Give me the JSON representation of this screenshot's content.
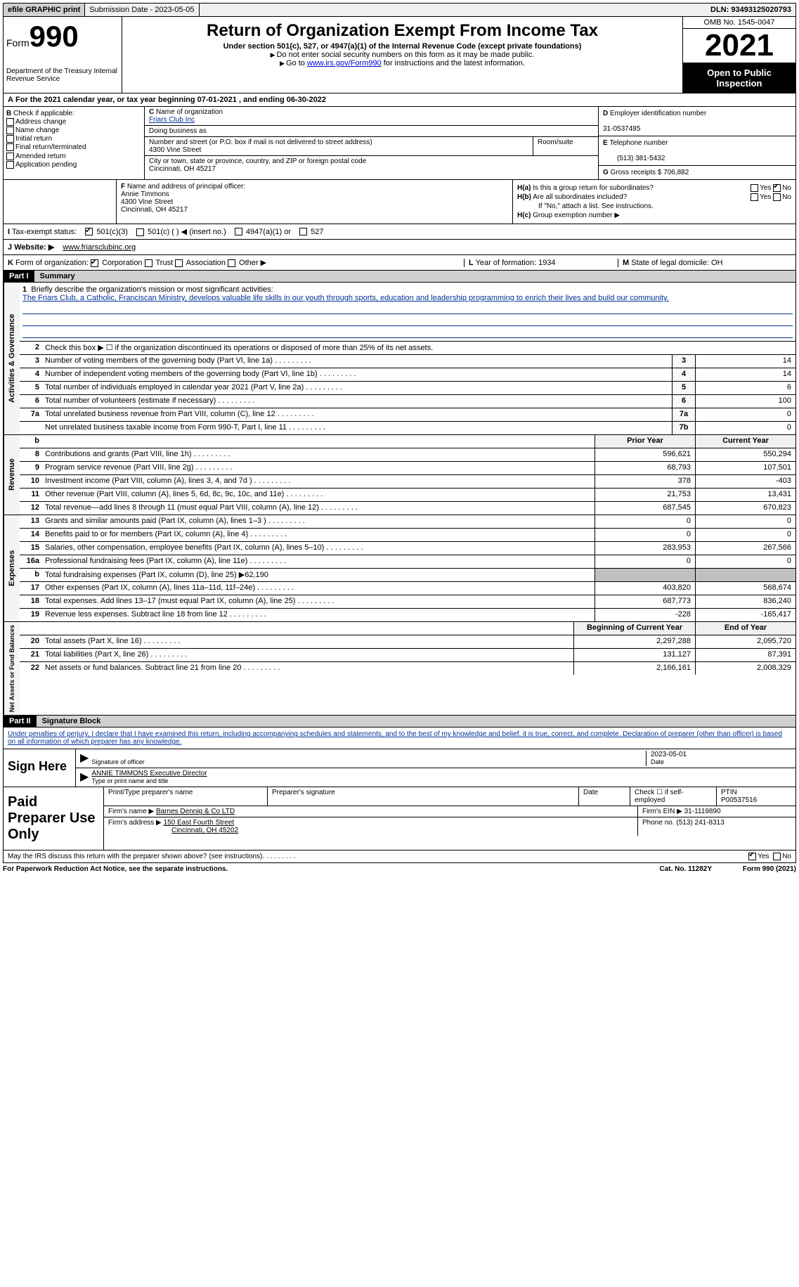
{
  "top": {
    "efile": "efile GRAPHIC print",
    "submission": "Submission Date - 2023-05-05",
    "dln": "DLN: 93493125020793"
  },
  "header": {
    "form_word": "Form",
    "form_num": "990",
    "title": "Return of Organization Exempt From Income Tax",
    "subtitle": "Under section 501(c), 527, or 4947(a)(1) of the Internal Revenue Code (except private foundations)",
    "instr1": "Do not enter social security numbers on this form as it may be made public.",
    "instr2_pre": "Go to ",
    "instr2_link": "www.irs.gov/Form990",
    "instr2_post": " for instructions and the latest information.",
    "dept": "Department of the Treasury Internal Revenue Service",
    "omb": "OMB No. 1545-0047",
    "year": "2021",
    "open": "Open to Public Inspection"
  },
  "A": {
    "text": "For the 2021 calendar year, or tax year beginning 07-01-2021   , and ending 06-30-2022"
  },
  "B": {
    "label": "Check if applicable:",
    "items": [
      "Address change",
      "Name change",
      "Initial return",
      "Final return/terminated",
      "Amended return",
      "Application pending"
    ]
  },
  "C": {
    "name_lbl": "Name of organization",
    "name": "Friars Club Inc",
    "dba_lbl": "Doing business as",
    "addr_lbl": "Number and street (or P.O. box if mail is not delivered to street address)",
    "room_lbl": "Room/suite",
    "addr": "4300 Vine Street",
    "city_lbl": "City or town, state or province, country, and ZIP or foreign postal code",
    "city": "Cincinnati, OH  45217"
  },
  "D": {
    "lbl": "Employer identification number",
    "val": "31-0537485"
  },
  "E": {
    "lbl": "Telephone number",
    "val": "(513) 381-5432"
  },
  "G": {
    "lbl": "Gross receipts $",
    "val": "706,882"
  },
  "F": {
    "lbl": "Name and address of principal officer:",
    "name": "Annie Timmons",
    "addr1": "4300 Vine Street",
    "addr2": "Cincinnati, OH  45217"
  },
  "H": {
    "a": "Is this a group return for subordinates?",
    "b": "Are all subordinates included?",
    "b_note": "If \"No,\" attach a list. See instructions.",
    "c": "Group exemption number ▶",
    "yes": "Yes",
    "no": "No"
  },
  "I": {
    "lbl": "Tax-exempt status:",
    "opt1": "501(c)(3)",
    "opt2": "501(c) (  ) ◀ (insert no.)",
    "opt3": "4947(a)(1) or",
    "opt4": "527"
  },
  "J": {
    "lbl": "Website: ▶",
    "val": "www.friarsclubinc.org"
  },
  "K": {
    "lbl": "Form of organization:",
    "opts": [
      "Corporation",
      "Trust",
      "Association",
      "Other ▶"
    ]
  },
  "L": {
    "lbl": "Year of formation:",
    "val": "1934"
  },
  "M": {
    "lbl": "State of legal domicile:",
    "val": "OH"
  },
  "part1": {
    "hdr": "Part I",
    "title": "Summary"
  },
  "mission": {
    "lbl": "Briefly describe the organization's mission or most significant activities:",
    "text": "The Friars Club, a Catholic, Franciscan Ministry, develops valuable life skills in our youth through sports, education and leadership programming to enrich their lives and build our community."
  },
  "line2": "Check this box ▶ ☐  if the organization discontinued its operations or disposed of more than 25% of its net assets.",
  "gov_lines": [
    {
      "n": "3",
      "d": "Number of voting members of the governing body (Part VI, line 1a)",
      "b": "3",
      "v": "14"
    },
    {
      "n": "4",
      "d": "Number of independent voting members of the governing body (Part VI, line 1b)",
      "b": "4",
      "v": "14"
    },
    {
      "n": "5",
      "d": "Total number of individuals employed in calendar year 2021 (Part V, line 2a)",
      "b": "5",
      "v": "6"
    },
    {
      "n": "6",
      "d": "Total number of volunteers (estimate if necessary)",
      "b": "6",
      "v": "100"
    },
    {
      "n": "7a",
      "d": "Total unrelated business revenue from Part VIII, column (C), line 12",
      "b": "7a",
      "v": "0"
    },
    {
      "n": "",
      "d": "Net unrelated business taxable income from Form 990-T, Part I, line 11",
      "b": "7b",
      "v": "0"
    }
  ],
  "col_hdr": {
    "prior": "Prior Year",
    "current": "Current Year"
  },
  "rev_lines": [
    {
      "n": "8",
      "d": "Contributions and grants (Part VIII, line 1h)",
      "p": "596,621",
      "c": "550,294"
    },
    {
      "n": "9",
      "d": "Program service revenue (Part VIII, line 2g)",
      "p": "68,793",
      "c": "107,501"
    },
    {
      "n": "10",
      "d": "Investment income (Part VIII, column (A), lines 3, 4, and 7d )",
      "p": "378",
      "c": "-403"
    },
    {
      "n": "11",
      "d": "Other revenue (Part VIII, column (A), lines 5, 6d, 8c, 9c, 10c, and 11e)",
      "p": "21,753",
      "c": "13,431"
    },
    {
      "n": "12",
      "d": "Total revenue—add lines 8 through 11 (must equal Part VIII, column (A), line 12)",
      "p": "687,545",
      "c": "670,823"
    }
  ],
  "exp_lines": [
    {
      "n": "13",
      "d": "Grants and similar amounts paid (Part IX, column (A), lines 1–3 )",
      "p": "0",
      "c": "0"
    },
    {
      "n": "14",
      "d": "Benefits paid to or for members (Part IX, column (A), line 4)",
      "p": "0",
      "c": "0"
    },
    {
      "n": "15",
      "d": "Salaries, other compensation, employee benefits (Part IX, column (A), lines 5–10)",
      "p": "283,953",
      "c": "267,566"
    },
    {
      "n": "16a",
      "d": "Professional fundraising fees (Part IX, column (A), line 11e)",
      "p": "0",
      "c": "0"
    },
    {
      "n": "b",
      "d": "Total fundraising expenses (Part IX, column (D), line 25) ▶62,190",
      "p": "",
      "c": "",
      "grey": true
    },
    {
      "n": "17",
      "d": "Other expenses (Part IX, column (A), lines 11a–11d, 11f–24e)",
      "p": "403,820",
      "c": "568,674"
    },
    {
      "n": "18",
      "d": "Total expenses. Add lines 13–17 (must equal Part IX, column (A), line 25)",
      "p": "687,773",
      "c": "836,240"
    },
    {
      "n": "19",
      "d": "Revenue less expenses. Subtract line 18 from line 12",
      "p": "-228",
      "c": "-165,417"
    }
  ],
  "na_hdr": {
    "beg": "Beginning of Current Year",
    "end": "End of Year"
  },
  "na_lines": [
    {
      "n": "20",
      "d": "Total assets (Part X, line 16)",
      "p": "2,297,288",
      "c": "2,095,720"
    },
    {
      "n": "21",
      "d": "Total liabilities (Part X, line 26)",
      "p": "131,127",
      "c": "87,391"
    },
    {
      "n": "22",
      "d": "Net assets or fund balances. Subtract line 21 from line 20",
      "p": "2,166,161",
      "c": "2,008,329"
    }
  ],
  "part2": {
    "hdr": "Part II",
    "title": "Signature Block"
  },
  "penalty": "Under penalties of perjury, I declare that I have examined this return, including accompanying schedules and statements, and to the best of my knowledge and belief, it is true, correct, and complete. Declaration of preparer (other than officer) is based on all information of which preparer has any knowledge.",
  "sign": {
    "lbl": "Sign Here",
    "sig_lbl": "Signature of officer",
    "date": "2023-05-01",
    "date_lbl": "Date",
    "name": "ANNIE TIMMONS Executive Director",
    "name_lbl": "Type or print name and title"
  },
  "prep": {
    "lbl": "Paid Preparer Use Only",
    "h1": "Print/Type preparer's name",
    "h2": "Preparer's signature",
    "h3": "Date",
    "h4": "Check ☐ if self-employed",
    "ptin_lbl": "PTIN",
    "ptin": "P00537516",
    "firm_lbl": "Firm's name   ▶",
    "firm": "Barnes Dennig & Co LTD",
    "ein_lbl": "Firm's EIN ▶",
    "ein": "31-1119890",
    "addr_lbl": "Firm's address ▶",
    "addr1": "150 East Fourth Street",
    "addr2": "Cincinnati, OH  45202",
    "phone_lbl": "Phone no.",
    "phone": "(513) 241-8313"
  },
  "discuss": {
    "q": "May the IRS discuss this return with the preparer shown above? (see instructions)",
    "yes": "Yes",
    "no": "No"
  },
  "footer": {
    "left": "For Paperwork Reduction Act Notice, see the separate instructions.",
    "mid": "Cat. No. 11282Y",
    "right": "Form 990 (2021)"
  },
  "dots": "  .    .    .    .    .    .    .    .    ."
}
